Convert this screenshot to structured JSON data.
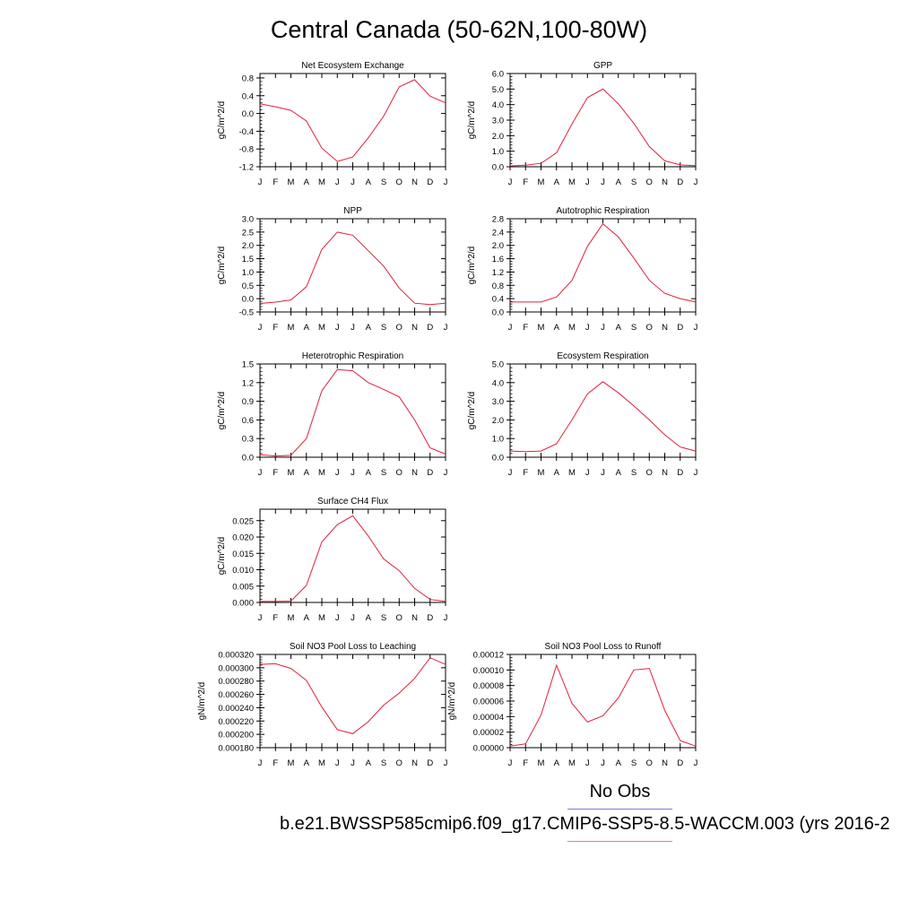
{
  "title": "Central Canada (50-62N,100-80W)",
  "legend": {
    "no_obs_label": "No Obs",
    "obs_color": "#6b6bd6",
    "model_label": "b.e21.BWSSP585cmip6.f09_g17.CMIP6-SSP5-8.5-WACCM.003 (yrs 2016-2",
    "model_color": "#e0203a"
  },
  "chart_data": [
    {
      "type": "line",
      "title": "Net Ecosystem Exchange",
      "ylabel": "gC/m^2/d",
      "x": [
        "J",
        "F",
        "M",
        "A",
        "M",
        "J",
        "J",
        "A",
        "S",
        "O",
        "N",
        "D",
        "J"
      ],
      "ylim": [
        -1.2,
        0.9
      ],
      "yticks": [
        -1.2,
        -0.8,
        -0.4,
        0.0,
        0.4,
        0.8
      ],
      "ytick_labels": [
        "-1.2",
        "-0.8",
        "-0.4",
        "0.0",
        "0.4",
        "0.8"
      ],
      "series": [
        {
          "values": [
            0.22,
            0.15,
            0.07,
            -0.17,
            -0.78,
            -1.08,
            -0.98,
            -0.55,
            -0.06,
            0.6,
            0.76,
            0.39,
            0.24
          ]
        }
      ]
    },
    {
      "type": "line",
      "title": "GPP",
      "ylabel": "gC/m^2/d",
      "x": [
        "J",
        "F",
        "M",
        "A",
        "M",
        "J",
        "J",
        "A",
        "S",
        "O",
        "N",
        "D",
        "J"
      ],
      "ylim": [
        0.0,
        6.0
      ],
      "yticks": [
        0,
        1,
        2,
        3,
        4,
        5,
        6
      ],
      "ytick_labels": [
        "0.0",
        "1.0",
        "2.0",
        "3.0",
        "4.0",
        "5.0",
        "6.0"
      ],
      "series": [
        {
          "values": [
            0.05,
            0.1,
            0.22,
            0.9,
            2.75,
            4.45,
            5.0,
            4.05,
            2.8,
            1.3,
            0.38,
            0.12,
            0.07
          ]
        }
      ]
    },
    {
      "type": "line",
      "title": "NPP",
      "ylabel": "gC/m^2/d",
      "x": [
        "J",
        "F",
        "M",
        "A",
        "M",
        "J",
        "J",
        "A",
        "S",
        "O",
        "N",
        "D",
        "J"
      ],
      "ylim": [
        -0.5,
        3.0
      ],
      "yticks": [
        -0.5,
        0,
        0.5,
        1.0,
        1.5,
        2.0,
        2.5,
        3.0
      ],
      "ytick_labels": [
        "-0.5",
        "0.0",
        "0.5",
        "1.0",
        "1.5",
        "2.0",
        "2.5",
        "3.0"
      ],
      "series": [
        {
          "values": [
            -0.18,
            -0.13,
            -0.05,
            0.45,
            1.85,
            2.5,
            2.38,
            1.8,
            1.22,
            0.4,
            -0.17,
            -0.22,
            -0.17
          ]
        }
      ]
    },
    {
      "type": "line",
      "title": "Autotrophic Respiration",
      "ylabel": "gC/m^2/d",
      "x": [
        "J",
        "F",
        "M",
        "A",
        "M",
        "J",
        "J",
        "A",
        "S",
        "O",
        "N",
        "D",
        "J"
      ],
      "ylim": [
        0.0,
        2.8
      ],
      "yticks": [
        0,
        0.4,
        0.8,
        1.2,
        1.6,
        2.0,
        2.4,
        2.8
      ],
      "ytick_labels": [
        "0.0",
        "0.4",
        "0.8",
        "1.2",
        "1.6",
        "2.0",
        "2.4",
        "2.8"
      ],
      "series": [
        {
          "values": [
            0.3,
            0.3,
            0.3,
            0.45,
            0.95,
            1.97,
            2.65,
            2.25,
            1.62,
            0.95,
            0.56,
            0.4,
            0.3
          ]
        }
      ]
    },
    {
      "type": "line",
      "title": "Heterotrophic Respiration",
      "ylabel": "gC/m^2/d",
      "x": [
        "J",
        "F",
        "M",
        "A",
        "M",
        "J",
        "J",
        "A",
        "S",
        "O",
        "N",
        "D",
        "J"
      ],
      "ylim": [
        0.0,
        1.5
      ],
      "yticks": [
        0,
        0.3,
        0.6,
        0.9,
        1.2,
        1.5
      ],
      "ytick_labels": [
        "0.0",
        "0.3",
        "0.6",
        "0.9",
        "1.2",
        "1.5"
      ],
      "series": [
        {
          "values": [
            0.04,
            0.02,
            0.03,
            0.3,
            1.07,
            1.41,
            1.39,
            1.2,
            1.09,
            0.97,
            0.6,
            0.15,
            0.05
          ]
        }
      ]
    },
    {
      "type": "line",
      "title": "Ecosystem Respiration",
      "ylabel": "gC/m^2/d",
      "x": [
        "J",
        "F",
        "M",
        "A",
        "M",
        "J",
        "J",
        "A",
        "S",
        "O",
        "N",
        "D",
        "J"
      ],
      "ylim": [
        0.0,
        5.0
      ],
      "yticks": [
        0,
        1,
        2,
        3,
        4,
        5
      ],
      "ytick_labels": [
        "0.0",
        "1.0",
        "2.0",
        "3.0",
        "4.0",
        "5.0"
      ],
      "series": [
        {
          "values": [
            0.33,
            0.3,
            0.33,
            0.72,
            2.0,
            3.4,
            4.05,
            3.45,
            2.75,
            2.0,
            1.2,
            0.55,
            0.33
          ]
        }
      ]
    },
    {
      "type": "line",
      "title": "Surface CH4 Flux",
      "ylabel": "gC/m^2/d",
      "x": [
        "J",
        "F",
        "M",
        "A",
        "M",
        "J",
        "J",
        "A",
        "S",
        "O",
        "N",
        "D",
        "J"
      ],
      "ylim": [
        0.0,
        0.0285
      ],
      "yticks": [
        0,
        0.005,
        0.01,
        0.015,
        0.02,
        0.025
      ],
      "ytick_labels": [
        "0.000",
        "0.005",
        "0.010",
        "0.015",
        "0.020",
        "0.025"
      ],
      "series": [
        {
          "values": [
            0.0003,
            0.0003,
            0.0004,
            0.0052,
            0.0185,
            0.0238,
            0.0265,
            0.0203,
            0.0133,
            0.0097,
            0.0043,
            0.0009,
            0.0003
          ]
        }
      ]
    },
    {
      "type": "line",
      "title": "Soil NO3 Pool Loss to Leaching",
      "ylabel": "gN/m^2/d",
      "x": [
        "J",
        "F",
        "M",
        "A",
        "M",
        "J",
        "J",
        "A",
        "S",
        "O",
        "N",
        "D",
        "J"
      ],
      "ylim": [
        0.00018,
        0.00032
      ],
      "yticks": [
        0.00018,
        0.0002,
        0.00022,
        0.00024,
        0.00026,
        0.00028,
        0.0003,
        0.00032
      ],
      "ytick_labels": [
        "0.000180",
        "0.000200",
        "0.000220",
        "0.000240",
        "0.000260",
        "0.000280",
        "0.000300",
        "0.000320"
      ],
      "series": [
        {
          "values": [
            0.000305,
            0.000306,
            0.000299,
            0.000281,
            0.000241,
            0.000207,
            0.000201,
            0.000219,
            0.000244,
            0.000262,
            0.000284,
            0.000315,
            0.000305
          ]
        }
      ]
    },
    {
      "type": "line",
      "title": "Soil NO3 Pool Loss to Runoff",
      "ylabel": "gN/m^2/d",
      "x": [
        "J",
        "F",
        "M",
        "A",
        "M",
        "J",
        "J",
        "A",
        "S",
        "O",
        "N",
        "D",
        "J"
      ],
      "ylim": [
        0.0,
        0.00012
      ],
      "yticks": [
        0,
        2e-05,
        4e-05,
        6e-05,
        8e-05,
        0.0001,
        0.00012
      ],
      "ytick_labels": [
        "0.00000",
        "0.00002",
        "0.00004",
        "0.00006",
        "0.00008",
        "0.00010",
        "0.00012"
      ],
      "series": [
        {
          "values": [
            2e-06,
            5e-06,
            4.2e-05,
            0.000106,
            5.7e-05,
            3.3e-05,
            4.1e-05,
            6.4e-05,
            0.0001,
            0.000102,
            4.8e-05,
            9e-06,
            2e-06
          ]
        }
      ]
    }
  ]
}
